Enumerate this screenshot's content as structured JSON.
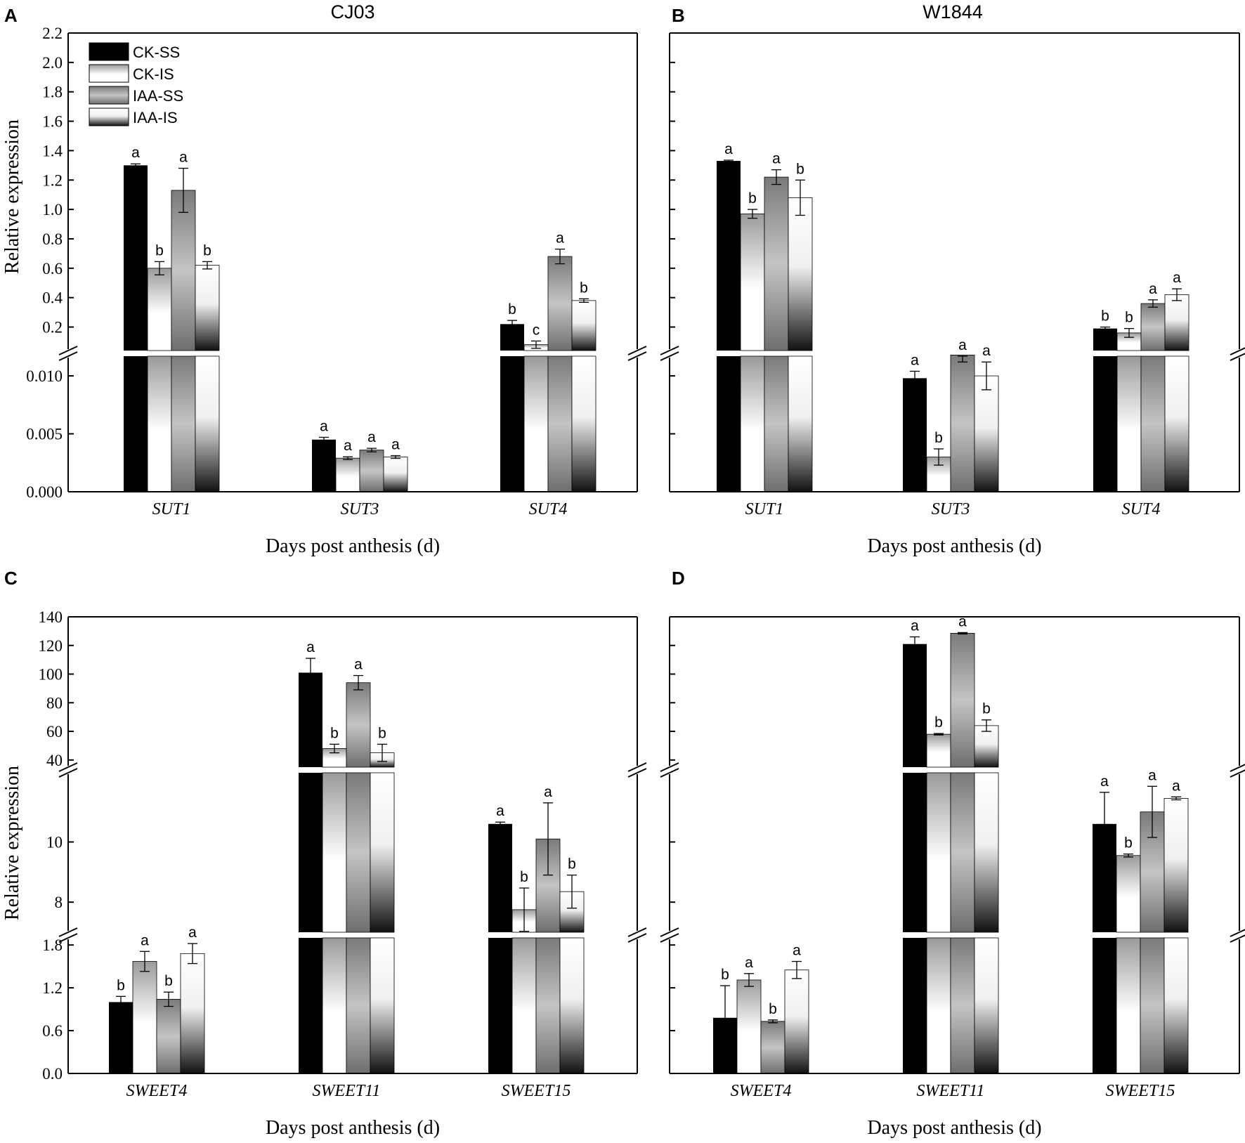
{
  "figure": {
    "legend": [
      {
        "label": "CK-SS",
        "style": "solid"
      },
      {
        "label": "CK-IS",
        "style": "fade-down-light"
      },
      {
        "label": "IAA-SS",
        "style": "grey-mid"
      },
      {
        "label": "IAA-IS",
        "style": "fade-down-dark"
      }
    ],
    "colors": {
      "frame": "#000000",
      "black": "#000000",
      "white": "#ffffff",
      "grey": "#8a8a8a"
    }
  },
  "chart_data": [
    {
      "id": "A",
      "panel_letter": "A",
      "title": "CJ03",
      "type": "bar",
      "xlabel": "Days post anthesis (d)",
      "ylabel": "Relative expression",
      "series": [
        "CK-SS",
        "CK-IS",
        "IAA-SS",
        "IAA-IS"
      ],
      "categories": [
        "SUT1",
        "SUT3",
        "SUT4"
      ],
      "values": [
        [
          1.3,
          0.6,
          1.13,
          0.62
        ],
        [
          0.0045,
          0.0029,
          0.0036,
          0.003
        ],
        [
          0.22,
          0.08,
          0.68,
          0.38
        ]
      ],
      "errors": [
        [
          0.01,
          0.045,
          0.15,
          0.025
        ],
        [
          0.0002,
          0.00012,
          0.00015,
          0.00012
        ],
        [
          0.025,
          0.025,
          0.05,
          0.012
        ]
      ],
      "letters": [
        [
          "a",
          "b",
          "a",
          "b"
        ],
        [
          "a",
          "a",
          "a",
          "a"
        ],
        [
          "b",
          "c",
          "a",
          "b"
        ]
      ],
      "segments": [
        {
          "range": [
            0,
            0.0117
          ],
          "ticks": [
            0,
            0.005,
            0.01
          ],
          "ticklabels": [
            "0.000",
            "0.005",
            "0.010"
          ]
        },
        {
          "range": [
            0.04,
            2.2
          ],
          "ticks": [
            0.2,
            0.4,
            0.6,
            0.8,
            1.0,
            1.2,
            1.4,
            1.6,
            1.8,
            2.0,
            2.2
          ],
          "ticklabels": [
            "0.2",
            "0.4",
            "0.6",
            "0.8",
            "1.0",
            "1.2",
            "1.4",
            "1.6",
            "1.8",
            "2.0",
            "2.2"
          ]
        }
      ],
      "show_legend": true
    },
    {
      "id": "B",
      "panel_letter": "B",
      "title": "W1844",
      "type": "bar",
      "xlabel": "Days post anthesis (d)",
      "ylabel": "",
      "series": [
        "CK-SS",
        "CK-IS",
        "IAA-SS",
        "IAA-IS"
      ],
      "categories": [
        "SUT1",
        "SUT3",
        "SUT4"
      ],
      "values": [
        [
          1.33,
          0.97,
          1.22,
          1.08
        ],
        [
          0.0098,
          0.003,
          0.0118,
          0.01
        ],
        [
          0.19,
          0.16,
          0.36,
          0.42
        ]
      ],
      "errors": [
        [
          0.005,
          0.03,
          0.05,
          0.12
        ],
        [
          0.0006,
          0.0007,
          0.0006,
          0.0012
        ],
        [
          0.01,
          0.03,
          0.025,
          0.04
        ]
      ],
      "letters": [
        [
          "a",
          "b",
          "a",
          "b"
        ],
        [
          "a",
          "b",
          "a",
          "a"
        ],
        [
          "b",
          "b",
          "a",
          "a"
        ]
      ],
      "segments": [
        {
          "range": [
            0,
            0.0117
          ],
          "ticks": [
            0,
            0.005,
            0.01
          ],
          "ticklabels": []
        },
        {
          "range": [
            0.04,
            2.2
          ],
          "ticks": [
            0.2,
            0.4,
            0.6,
            0.8,
            1.0,
            1.2,
            1.4,
            1.6,
            1.8,
            2.0,
            2.2
          ],
          "ticklabels": []
        }
      ],
      "show_legend": false
    },
    {
      "id": "C",
      "panel_letter": "C",
      "title": "",
      "type": "bar",
      "xlabel": "Days post anthesis (d)",
      "ylabel": "Relative expression",
      "series": [
        "CK-SS",
        "CK-IS",
        "IAA-SS",
        "IAA-IS"
      ],
      "categories": [
        "SWEET4",
        "SWEET11",
        "SWEET15"
      ],
      "values": [
        [
          1.0,
          1.57,
          1.04,
          1.68
        ],
        [
          101,
          48,
          94,
          45
        ],
        [
          10.6,
          7.75,
          10.1,
          8.35
        ]
      ],
      "errors": [
        [
          0.08,
          0.14,
          0.1,
          0.14
        ],
        [
          10,
          3,
          5,
          6
        ],
        [
          0.06,
          0.72,
          1.2,
          0.55
        ]
      ],
      "letters": [
        [
          "b",
          "a",
          "b",
          "a"
        ],
        [
          "a",
          "b",
          "a",
          "b"
        ],
        [
          "a",
          "b",
          "a",
          "b"
        ]
      ],
      "segments": [
        {
          "range": [
            0,
            1.9
          ],
          "ticks": [
            0,
            0.6,
            1.2,
            1.8
          ],
          "ticklabels": [
            "0.0",
            "0.6",
            "1.2",
            "1.8"
          ]
        },
        {
          "range": [
            7.0,
            12.3
          ],
          "ticks": [
            8,
            10
          ],
          "ticklabels": [
            "8",
            "10"
          ]
        },
        {
          "range": [
            35,
            140
          ],
          "ticks": [
            40,
            60,
            80,
            100,
            120,
            140
          ],
          "ticklabels": [
            "40",
            "60",
            "80",
            "100",
            "120",
            "140"
          ]
        }
      ],
      "show_legend": false
    },
    {
      "id": "D",
      "panel_letter": "D",
      "title": "",
      "type": "bar",
      "xlabel": "Days post anthesis (d)",
      "ylabel": "",
      "series": [
        "CK-SS",
        "CK-IS",
        "IAA-SS",
        "IAA-IS"
      ],
      "categories": [
        "SWEET4",
        "SWEET11",
        "SWEET15"
      ],
      "values": [
        [
          0.78,
          1.31,
          0.73,
          1.45
        ],
        [
          121,
          58,
          128.5,
          64
        ],
        [
          10.6,
          9.55,
          11.0,
          11.45
        ]
      ],
      "errors": [
        [
          0.45,
          0.09,
          0.02,
          0.12
        ],
        [
          5,
          0.5,
          0.5,
          4
        ],
        [
          1.05,
          0.05,
          0.85,
          0.05
        ]
      ],
      "letters": [
        [
          "b",
          "a",
          "b",
          "a"
        ],
        [
          "a",
          "b",
          "a",
          "b"
        ],
        [
          "a",
          "b",
          "a",
          "a"
        ]
      ],
      "segments": [
        {
          "range": [
            0,
            1.9
          ],
          "ticks": [
            0,
            0.6,
            1.2,
            1.8
          ],
          "ticklabels": []
        },
        {
          "range": [
            7.0,
            12.3
          ],
          "ticks": [
            8,
            10
          ],
          "ticklabels": []
        },
        {
          "range": [
            35,
            140
          ],
          "ticks": [
            40,
            60,
            80,
            100,
            120,
            140
          ],
          "ticklabels": []
        }
      ],
      "show_legend": false
    }
  ]
}
